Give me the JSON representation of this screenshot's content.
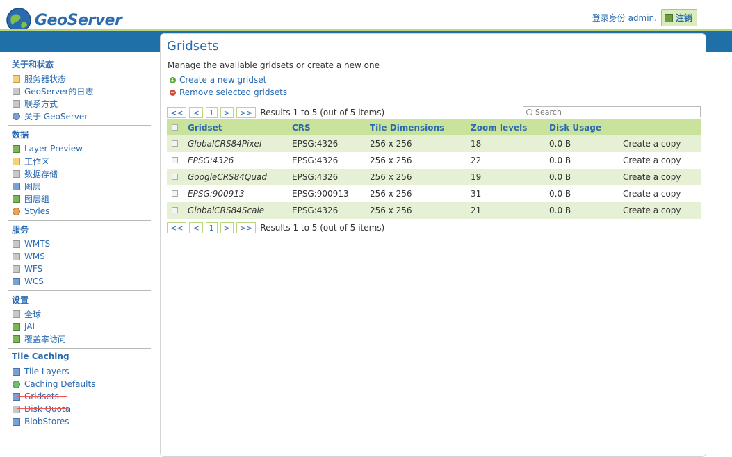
{
  "header": {
    "logo_text": "GeoServer",
    "login_text": "登录身份 admin.",
    "logout_label": "注销"
  },
  "sidebar": {
    "sections": [
      {
        "title": "关于和状态",
        "items": [
          "服务器状态",
          "GeoServer的日志",
          "联系方式",
          "关于 GeoServer"
        ]
      },
      {
        "title": "数据",
        "items": [
          "Layer Preview",
          "工作区",
          "数据存储",
          "图层",
          "图层组",
          "Styles"
        ]
      },
      {
        "title": "服务",
        "items": [
          "WMTS",
          "WMS",
          "WFS",
          "WCS"
        ]
      },
      {
        "title": "设置",
        "items": [
          "全球",
          "JAI",
          "覆盖率访问"
        ]
      },
      {
        "title": "Tile Caching",
        "items": [
          "Tile Layers",
          "Caching Defaults",
          "Gridsets",
          "Disk Quota",
          "BlobStores"
        ]
      }
    ]
  },
  "main": {
    "title": "Gridsets",
    "description": "Manage the available gridsets or create a new one",
    "create_link": "Create a new gridset",
    "remove_link": "Remove selected gridsets",
    "pager": {
      "first": "<<",
      "prev": "<",
      "page": "1",
      "next": ">",
      "last": ">>"
    },
    "results_text": "Results 1 to 5 (out of 5 items)",
    "search_placeholder": "Search",
    "columns": [
      "Gridset",
      "CRS",
      "Tile Dimensions",
      "Zoom levels",
      "Disk Usage"
    ],
    "rows": [
      {
        "name": "GlobalCRS84Pixel",
        "crs": "EPSG:4326",
        "dims": "256 x 256",
        "zoom": "18",
        "disk": "0.0 B",
        "action": "Create a copy"
      },
      {
        "name": "EPSG:4326",
        "crs": "EPSG:4326",
        "dims": "256 x 256",
        "zoom": "22",
        "disk": "0.0 B",
        "action": "Create a copy"
      },
      {
        "name": "GoogleCRS84Quad",
        "crs": "EPSG:4326",
        "dims": "256 x 256",
        "zoom": "19",
        "disk": "0.0 B",
        "action": "Create a copy"
      },
      {
        "name": "EPSG:900913",
        "crs": "EPSG:900913",
        "dims": "256 x 256",
        "zoom": "31",
        "disk": "0.0 B",
        "action": "Create a copy"
      },
      {
        "name": "GlobalCRS84Scale",
        "crs": "EPSG:4326",
        "dims": "256 x 256",
        "zoom": "21",
        "disk": "0.0 B",
        "action": "Create a copy"
      }
    ]
  }
}
